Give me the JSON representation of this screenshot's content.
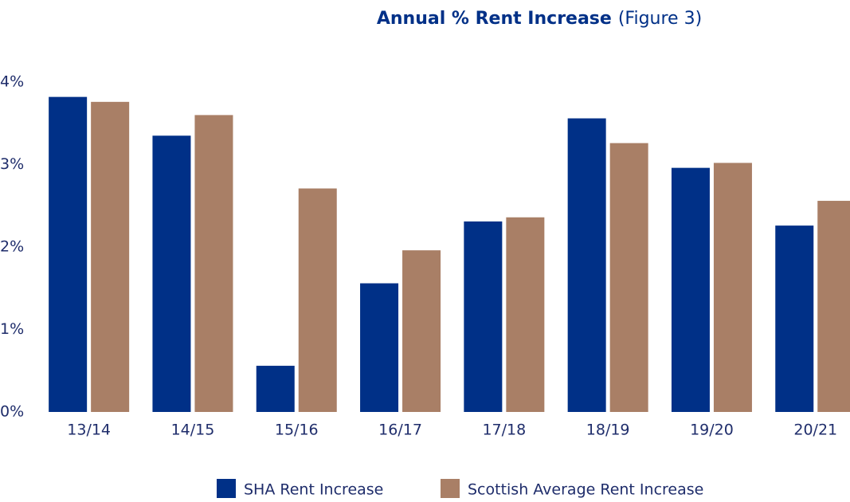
{
  "chart_data": {
    "type": "bar",
    "title": "Annual % Rent Increase",
    "subtitle": "(Figure 3)",
    "categories": [
      "13/14",
      "14/15",
      "15/16",
      "16/17",
      "17/18",
      "18/19",
      "19/20",
      "20/21"
    ],
    "series": [
      {
        "name": "SHA Rent Increase",
        "color": "#003087",
        "values": [
          3.82,
          3.35,
          0.56,
          1.56,
          2.31,
          3.56,
          2.96,
          2.26
        ]
      },
      {
        "name": "Scottish Average Rent Increase",
        "color": "#a97f66",
        "values": [
          3.76,
          3.6,
          2.71,
          1.96,
          2.36,
          3.26,
          3.02,
          2.56
        ]
      }
    ],
    "ylim": [
      0,
      4
    ],
    "yticks": [
      {
        "value": 0,
        "label": "0%"
      },
      {
        "value": 1,
        "label": "1%"
      },
      {
        "value": 2,
        "label": "2%"
      },
      {
        "value": 3,
        "label": "3%"
      },
      {
        "value": 4,
        "label": "4%"
      }
    ],
    "grid": false,
    "legend": "bottom"
  }
}
